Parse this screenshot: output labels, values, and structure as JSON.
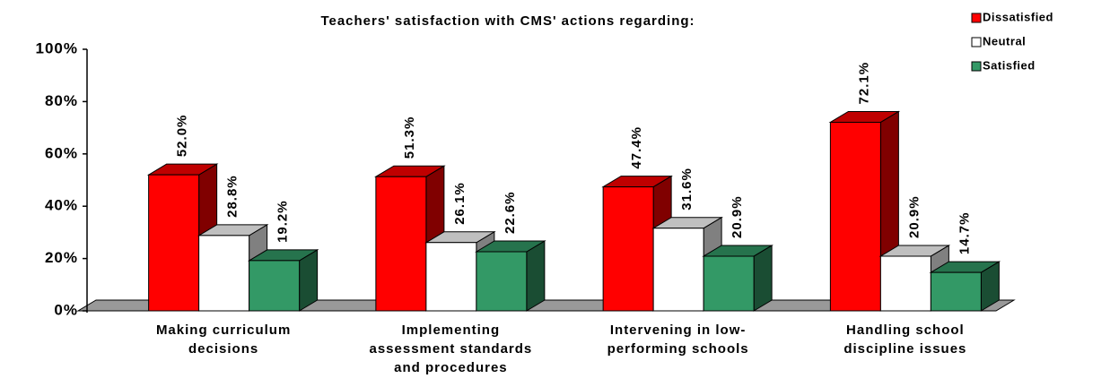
{
  "chart_data": {
    "type": "bar3d",
    "title": "Teachers' satisfaction with CMS' actions regarding:",
    "categories": [
      "Making curriculum decisions",
      "Implementing assessment standards and procedures",
      "Intervening in low-performing schools",
      "Handling school discipline issues"
    ],
    "series": [
      {
        "name": "Dissatisfied",
        "color": "#ff0000",
        "values": [
          52.0,
          51.3,
          47.4,
          72.1
        ],
        "value_labels": [
          "52.0%",
          "51.3%",
          "47.4%",
          "72.1%"
        ]
      },
      {
        "name": "Neutral",
        "color": "#ffffff",
        "values": [
          28.8,
          26.1,
          31.6,
          20.9
        ],
        "value_labels": [
          "28.8%",
          "26.1%",
          "31.6%",
          "20.9%"
        ]
      },
      {
        "name": "Satisfied",
        "color": "#339966",
        "values": [
          19.2,
          22.6,
          20.9,
          14.7
        ],
        "value_labels": [
          "19.2%",
          "22.6%",
          "20.9%",
          "14.7%"
        ]
      }
    ],
    "ylim": [
      0,
      100
    ],
    "yticks": [
      {
        "value": 0,
        "label": "0%"
      },
      {
        "value": 20,
        "label": "20%"
      },
      {
        "value": 40,
        "label": "40%"
      },
      {
        "value": 60,
        "label": "60%"
      },
      {
        "value": 80,
        "label": "80%"
      },
      {
        "value": 100,
        "label": "100%"
      }
    ],
    "legend": "top-right"
  }
}
